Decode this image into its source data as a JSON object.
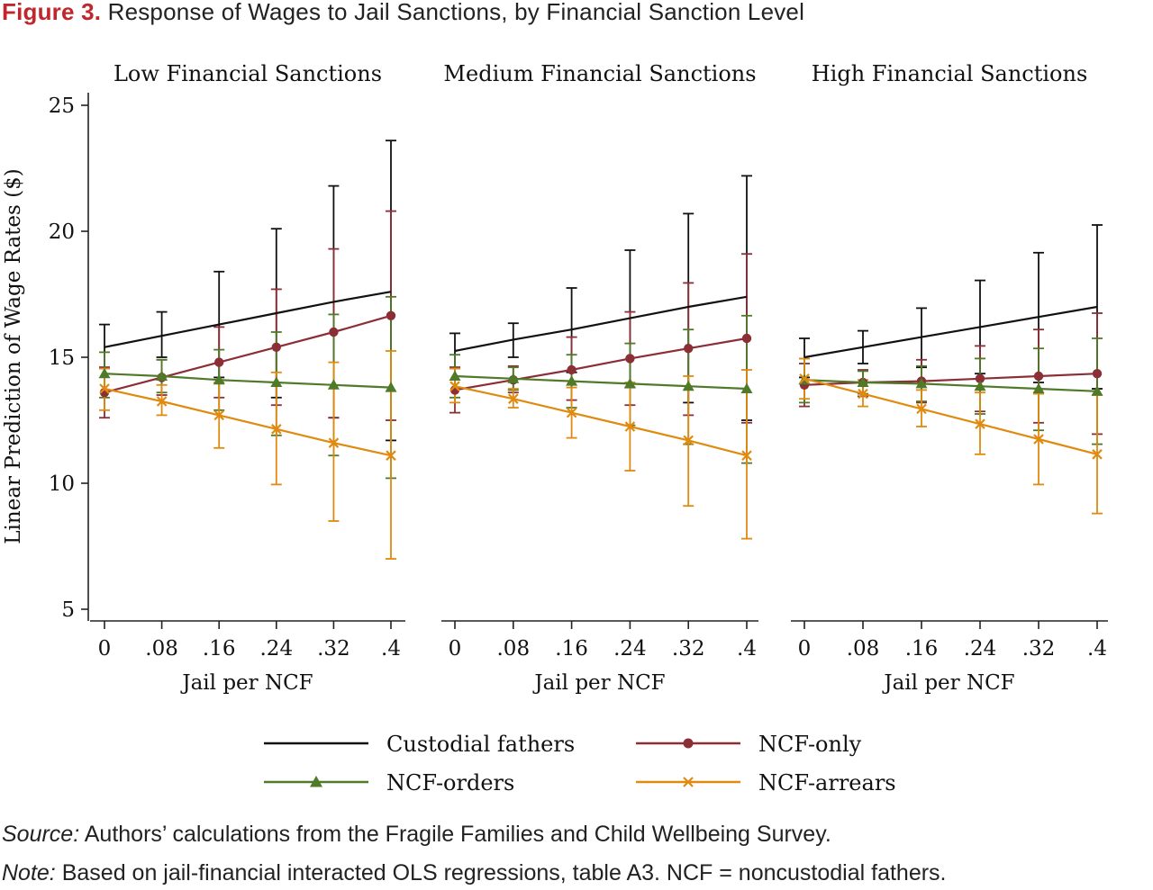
{
  "figure": {
    "label": "Figure 3.",
    "title": "Response of Wages to Jail Sanctions, by Financial Sanction Level"
  },
  "chart_data": {
    "type": "line",
    "x": [
      0,
      0.08,
      0.16,
      0.24,
      0.32,
      0.4
    ],
    "xticklabels": [
      "0",
      ".08",
      ".16",
      ".24",
      ".32",
      ".4"
    ],
    "xlabel": "Jail per NCF",
    "ylabel": "Linear Prediction of Wage Rates ($)",
    "ylim": [
      5,
      25
    ],
    "yticks": [
      5,
      10,
      15,
      20,
      25
    ],
    "grid": false,
    "legend_position": "bottom",
    "series_styles": [
      {
        "name": "Custodial fathers",
        "color": "#111111",
        "marker": "none"
      },
      {
        "name": "NCF-only",
        "color": "#8b2e35",
        "marker": "circle"
      },
      {
        "name": "NCF-orders",
        "color": "#4f7a28",
        "marker": "triangle"
      },
      {
        "name": "NCF-arrears",
        "color": "#e08a10",
        "marker": "x"
      }
    ],
    "panels": [
      {
        "title": "Low Financial Sanctions",
        "series": [
          {
            "name": "Custodial fathers",
            "values": [
              15.4,
              15.85,
              16.3,
              16.75,
              17.2,
              17.6
            ],
            "ci_low": [
              14.6,
              15.0,
              14.2,
              13.4,
              12.6,
              11.7
            ],
            "ci_high": [
              16.3,
              16.8,
              18.4,
              20.1,
              21.8,
              23.6
            ]
          },
          {
            "name": "NCF-only",
            "values": [
              13.6,
              14.2,
              14.8,
              15.4,
              16.0,
              16.65
            ],
            "ci_low": [
              12.6,
              13.5,
              13.4,
              13.1,
              12.6,
              12.5
            ],
            "ci_high": [
              14.6,
              14.9,
              16.2,
              17.7,
              19.3,
              20.8
            ]
          },
          {
            "name": "NCF-orders",
            "values": [
              14.35,
              14.25,
              14.1,
              14.0,
              13.9,
              13.8
            ],
            "ci_low": [
              13.4,
              13.6,
              12.9,
              11.9,
              11.1,
              10.2
            ],
            "ci_high": [
              15.2,
              14.9,
              15.3,
              16.0,
              16.7,
              17.4
            ]
          },
          {
            "name": "NCF-arrears",
            "values": [
              13.75,
              13.25,
              12.7,
              12.15,
              11.6,
              11.1
            ],
            "ci_low": [
              12.9,
              12.7,
              11.4,
              9.95,
              8.5,
              7.0
            ],
            "ci_high": [
              14.55,
              13.9,
              14.0,
              14.4,
              14.8,
              15.25
            ]
          }
        ]
      },
      {
        "title": "Medium Financial Sanctions",
        "series": [
          {
            "name": "Custodial fathers",
            "values": [
              15.25,
              15.7,
              16.1,
              16.55,
              17.0,
              17.4
            ],
            "ci_low": [
              14.6,
              15.0,
              14.4,
              13.8,
              13.2,
              12.5
            ],
            "ci_high": [
              15.95,
              16.35,
              17.75,
              19.25,
              20.7,
              22.2
            ]
          },
          {
            "name": "NCF-only",
            "values": [
              13.7,
              14.1,
              14.5,
              14.95,
              15.35,
              15.75
            ],
            "ci_low": [
              12.8,
              13.6,
              13.3,
              13.1,
              12.7,
              12.4
            ],
            "ci_high": [
              14.6,
              14.65,
              15.8,
              16.8,
              17.95,
              19.1
            ]
          },
          {
            "name": "NCF-orders",
            "values": [
              14.25,
              14.15,
              14.05,
              13.95,
              13.85,
              13.75
            ],
            "ci_low": [
              13.4,
              13.7,
              13.0,
              12.3,
              11.55,
              10.8
            ],
            "ci_high": [
              15.1,
              14.6,
              15.1,
              15.55,
              16.1,
              16.65
            ]
          },
          {
            "name": "NCF-arrears",
            "values": [
              13.85,
              13.35,
              12.8,
              12.25,
              11.7,
              11.1
            ],
            "ci_low": [
              13.2,
              13.0,
              11.8,
              10.5,
              9.1,
              7.8
            ],
            "ci_high": [
              14.55,
              13.75,
              13.8,
              14.0,
              14.25,
              14.5
            ]
          }
        ]
      },
      {
        "title": "High Financial Sanctions",
        "series": [
          {
            "name": "Custodial fathers",
            "values": [
              15.0,
              15.4,
              15.8,
              16.2,
              16.6,
              17.0
            ],
            "ci_low": [
              14.2,
              14.75,
              14.6,
              14.35,
              14.0,
              13.75
            ],
            "ci_high": [
              15.75,
              16.05,
              16.95,
              18.05,
              19.15,
              20.25
            ]
          },
          {
            "name": "NCF-only",
            "values": [
              13.9,
              14.0,
              14.05,
              14.15,
              14.25,
              14.35
            ],
            "ci_low": [
              13.05,
              13.45,
              13.2,
              12.85,
              12.4,
              11.95
            ],
            "ci_high": [
              14.75,
              14.5,
              14.9,
              15.45,
              16.1,
              16.75
            ]
          },
          {
            "name": "NCF-orders",
            "values": [
              14.1,
              14.0,
              13.95,
              13.85,
              13.75,
              13.65
            ],
            "ci_low": [
              13.2,
              13.55,
              13.25,
              12.75,
              12.1,
              11.55
            ],
            "ci_high": [
              14.95,
              14.45,
              14.65,
              14.95,
              15.35,
              15.75
            ]
          },
          {
            "name": "NCF-arrears",
            "values": [
              14.15,
              13.55,
              12.95,
              12.35,
              11.75,
              11.15
            ],
            "ci_low": [
              13.35,
              13.05,
              12.25,
              11.15,
              9.95,
              8.8
            ],
            "ci_high": [
              14.95,
              14.1,
              13.7,
              13.6,
              13.55,
              13.5
            ]
          }
        ]
      }
    ]
  },
  "notes": {
    "source_label": "Source:",
    "source_text": " Authors’ calculations from the Fragile Families and Child Wellbeing Survey.",
    "note_label": "Note:",
    "note_text": " Based on jail-financial interacted OLS regressions, table A3. NCF = noncustodial fathers."
  }
}
